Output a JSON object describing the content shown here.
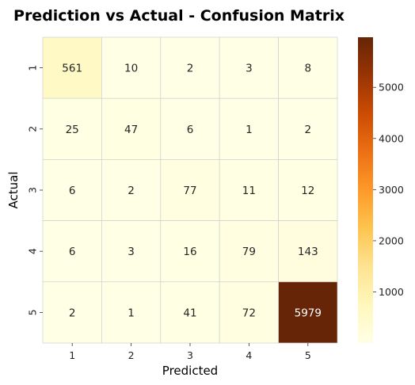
{
  "chart_data": {
    "type": "heatmap",
    "title": "Prediction vs Actual - Confusion Matrix",
    "xlabel": "Predicted",
    "ylabel": "Actual",
    "x_categories": [
      "1",
      "2",
      "3",
      "4",
      "5"
    ],
    "y_categories": [
      "1",
      "2",
      "3",
      "4",
      "5"
    ],
    "values": [
      [
        561,
        10,
        2,
        3,
        8
      ],
      [
        25,
        47,
        6,
        1,
        2
      ],
      [
        6,
        2,
        77,
        11,
        12
      ],
      [
        6,
        3,
        16,
        79,
        143
      ],
      [
        2,
        1,
        41,
        72,
        5979
      ]
    ],
    "colorbar": {
      "range": [
        1,
        5979
      ],
      "ticks": [
        1000,
        2000,
        3000,
        4000,
        5000
      ],
      "colormap": "YlOrBr",
      "colors": [
        "#ffffe5",
        "#fff7bc",
        "#fee391",
        "#fec44f",
        "#fe9929",
        "#ec7014",
        "#cc4c02",
        "#993404",
        "#662506"
      ]
    },
    "gridlines": true
  }
}
